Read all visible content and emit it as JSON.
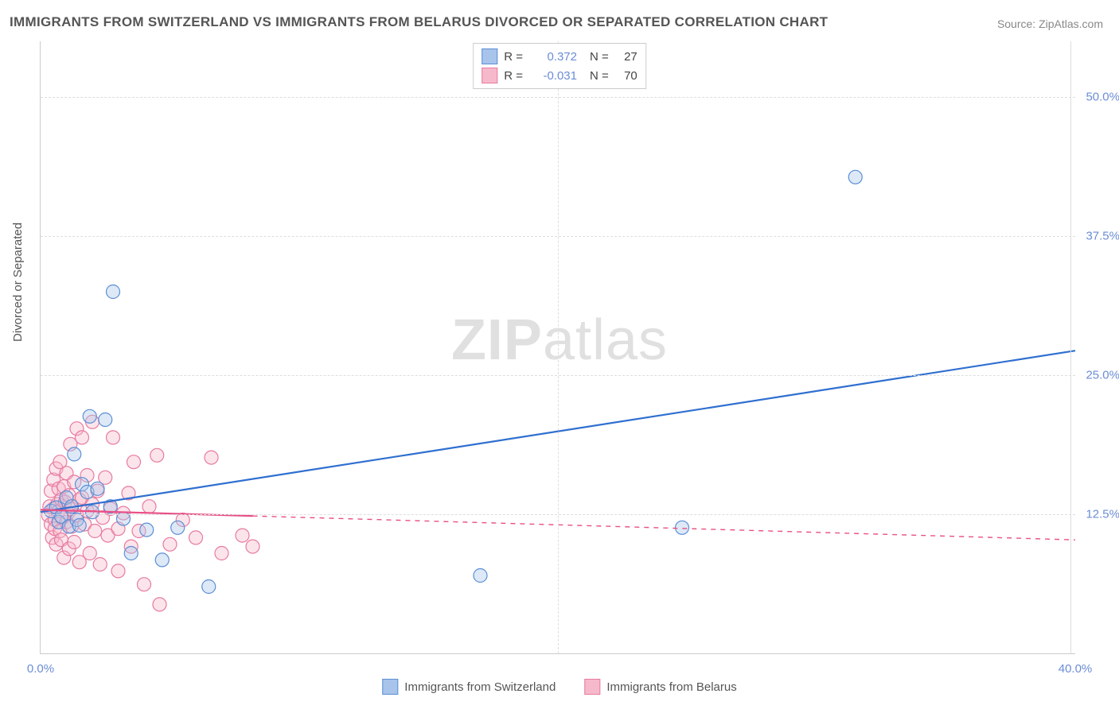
{
  "title": "IMMIGRANTS FROM SWITZERLAND VS IMMIGRANTS FROM BELARUS DIVORCED OR SEPARATED CORRELATION CHART",
  "source": "Source: ZipAtlas.com",
  "watermark_a": "ZIP",
  "watermark_b": "atlas",
  "yaxis_label": "Divorced or Separated",
  "chart": {
    "type": "scatter",
    "background_color": "#ffffff",
    "grid_color": "#dddddd",
    "axis_color": "#cccccc",
    "tick_label_color": "#6b8dd6",
    "xlim": [
      0,
      40
    ],
    "ylim": [
      0,
      55
    ],
    "xticks": [
      0,
      40
    ],
    "xtick_labels": [
      "0.0%",
      "40.0%"
    ],
    "grid_v_at": [
      20
    ],
    "yticks": [
      12.5,
      25.0,
      37.5,
      50.0
    ],
    "ytick_labels": [
      "12.5%",
      "25.0%",
      "37.5%",
      "50.0%"
    ],
    "marker_radius": 8.5,
    "marker_stroke_width": 1.2,
    "marker_fill_opacity": 0.38,
    "line_width": 2.2,
    "series": [
      {
        "key": "switzerland",
        "label": "Immigrants from Switzerland",
        "color_stroke": "#5b8fd6",
        "color_fill": "#a8c4ea",
        "line_color": "#2f6fd0",
        "r_label": "R =",
        "r_value": "0.372",
        "n_label": "N =",
        "n_value": "27",
        "regression": {
          "x1": 0,
          "y1": 12.7,
          "x2": 40,
          "y2": 27.2,
          "solid_until_x": 40,
          "dash": ""
        },
        "points": [
          [
            0.4,
            12.8
          ],
          [
            0.6,
            13.1
          ],
          [
            0.7,
            11.8
          ],
          [
            0.8,
            12.3
          ],
          [
            1.0,
            14.0
          ],
          [
            1.1,
            11.4
          ],
          [
            1.2,
            13.2
          ],
          [
            1.3,
            17.9
          ],
          [
            1.4,
            12.0
          ],
          [
            1.5,
            11.5
          ],
          [
            1.6,
            15.2
          ],
          [
            1.8,
            14.5
          ],
          [
            1.9,
            21.3
          ],
          [
            2.0,
            12.7
          ],
          [
            2.2,
            14.8
          ],
          [
            2.5,
            21.0
          ],
          [
            2.7,
            13.2
          ],
          [
            2.8,
            32.5
          ],
          [
            3.2,
            12.1
          ],
          [
            3.5,
            9.0
          ],
          [
            4.1,
            11.1
          ],
          [
            4.7,
            8.4
          ],
          [
            5.3,
            11.3
          ],
          [
            6.5,
            6.0
          ],
          [
            17.0,
            7.0
          ],
          [
            24.8,
            11.3
          ],
          [
            31.5,
            42.8
          ]
        ]
      },
      {
        "key": "belarus",
        "label": "Immigrants from Belarus",
        "color_stroke": "#e77ba0",
        "color_fill": "#f6b9cb",
        "line_color": "#e94f86",
        "r_label": "R =",
        "r_value": "-0.031",
        "n_label": "N =",
        "n_value": "70",
        "regression": {
          "x1": 0,
          "y1": 12.9,
          "x2": 40,
          "y2": 10.2,
          "solid_until_x": 8.2,
          "dash": "6 6"
        },
        "points": [
          [
            0.3,
            12.4
          ],
          [
            0.35,
            13.2
          ],
          [
            0.4,
            11.6
          ],
          [
            0.4,
            14.6
          ],
          [
            0.45,
            10.4
          ],
          [
            0.5,
            13.0
          ],
          [
            0.5,
            15.6
          ],
          [
            0.55,
            12.0
          ],
          [
            0.55,
            11.2
          ],
          [
            0.6,
            16.6
          ],
          [
            0.6,
            9.8
          ],
          [
            0.65,
            13.4
          ],
          [
            0.7,
            12.8
          ],
          [
            0.7,
            14.8
          ],
          [
            0.75,
            11.0
          ],
          [
            0.75,
            17.2
          ],
          [
            0.8,
            13.8
          ],
          [
            0.8,
            10.2
          ],
          [
            0.85,
            12.2
          ],
          [
            0.9,
            15.0
          ],
          [
            0.9,
            8.6
          ],
          [
            0.95,
            13.6
          ],
          [
            1.0,
            11.8
          ],
          [
            1.0,
            16.2
          ],
          [
            1.05,
            12.6
          ],
          [
            1.1,
            14.2
          ],
          [
            1.1,
            9.4
          ],
          [
            1.15,
            18.8
          ],
          [
            1.2,
            13.0
          ],
          [
            1.2,
            11.4
          ],
          [
            1.3,
            15.4
          ],
          [
            1.3,
            10.0
          ],
          [
            1.4,
            12.4
          ],
          [
            1.4,
            20.2
          ],
          [
            1.5,
            13.8
          ],
          [
            1.5,
            8.2
          ],
          [
            1.6,
            14.0
          ],
          [
            1.6,
            19.4
          ],
          [
            1.7,
            11.6
          ],
          [
            1.8,
            12.8
          ],
          [
            1.8,
            16.0
          ],
          [
            1.9,
            9.0
          ],
          [
            2.0,
            13.4
          ],
          [
            2.0,
            20.8
          ],
          [
            2.1,
            11.0
          ],
          [
            2.2,
            14.6
          ],
          [
            2.3,
            8.0
          ],
          [
            2.4,
            12.2
          ],
          [
            2.5,
            15.8
          ],
          [
            2.6,
            10.6
          ],
          [
            2.7,
            13.0
          ],
          [
            2.8,
            19.4
          ],
          [
            3.0,
            11.2
          ],
          [
            3.0,
            7.4
          ],
          [
            3.2,
            12.6
          ],
          [
            3.4,
            14.4
          ],
          [
            3.5,
            9.6
          ],
          [
            3.6,
            17.2
          ],
          [
            3.8,
            11.0
          ],
          [
            4.0,
            6.2
          ],
          [
            4.2,
            13.2
          ],
          [
            4.5,
            17.8
          ],
          [
            4.6,
            4.4
          ],
          [
            5.0,
            9.8
          ],
          [
            5.5,
            12.0
          ],
          [
            6.0,
            10.4
          ],
          [
            6.6,
            17.6
          ],
          [
            7.0,
            9.0
          ],
          [
            7.8,
            10.6
          ],
          [
            8.2,
            9.6
          ]
        ]
      }
    ]
  },
  "legend_bottom": [
    {
      "label": "Immigrants from Switzerland",
      "stroke": "#5b8fd6",
      "fill": "#a8c4ea"
    },
    {
      "label": "Immigrants from Belarus",
      "stroke": "#e77ba0",
      "fill": "#f6b9cb"
    }
  ]
}
